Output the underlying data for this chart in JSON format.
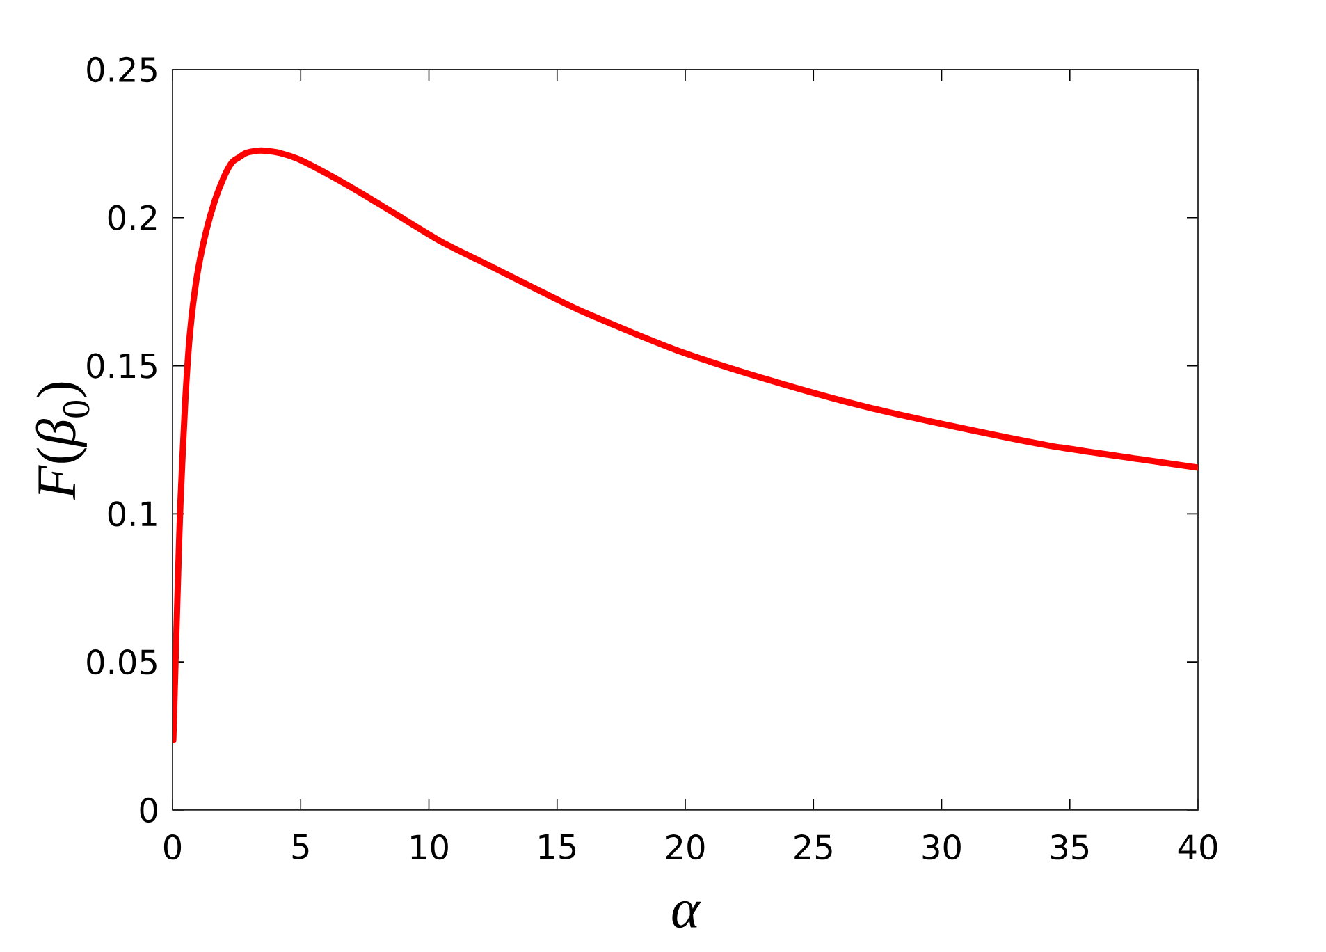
{
  "chart_data": {
    "type": "line",
    "xlabel": "α",
    "ylabel": "*F*(*β*$_{0}$)",
    "x": [
      0.03,
      0.12,
      0.22,
      0.31,
      0.49,
      0.67,
      0.94,
      1.3,
      1.66,
      2.02,
      2.32,
      2.57,
      2.86,
      3.29,
      3.58,
      4.2,
      5.03,
      6.84,
      8.65,
      10.46,
      12.27,
      14.07,
      16.07,
      19.68,
      23.3,
      26.92,
      30.54,
      34.16,
      37.77,
      40
    ],
    "values": [
      0.0236,
      0.051,
      0.08,
      0.104,
      0.137,
      0.16,
      0.1795,
      0.195,
      0.206,
      0.214,
      0.2187,
      0.2202,
      0.2218,
      0.2226,
      0.2226,
      0.2218,
      0.2193,
      0.2109,
      0.2015,
      0.192,
      0.1842,
      0.1764,
      0.168,
      0.1552,
      0.1451,
      0.1364,
      0.1294,
      0.1231,
      0.1184,
      0.1156
    ],
    "color": "#ff0000",
    "marker": "none",
    "line_style": "solid",
    "xlim": [
      0,
      40
    ],
    "ylim": [
      0,
      0.25
    ],
    "xticks": [
      0,
      5,
      10,
      15,
      20,
      25,
      30,
      35,
      40
    ],
    "yticks": [
      0,
      0.05,
      0.1,
      0.15,
      0.2,
      0.25
    ]
  }
}
